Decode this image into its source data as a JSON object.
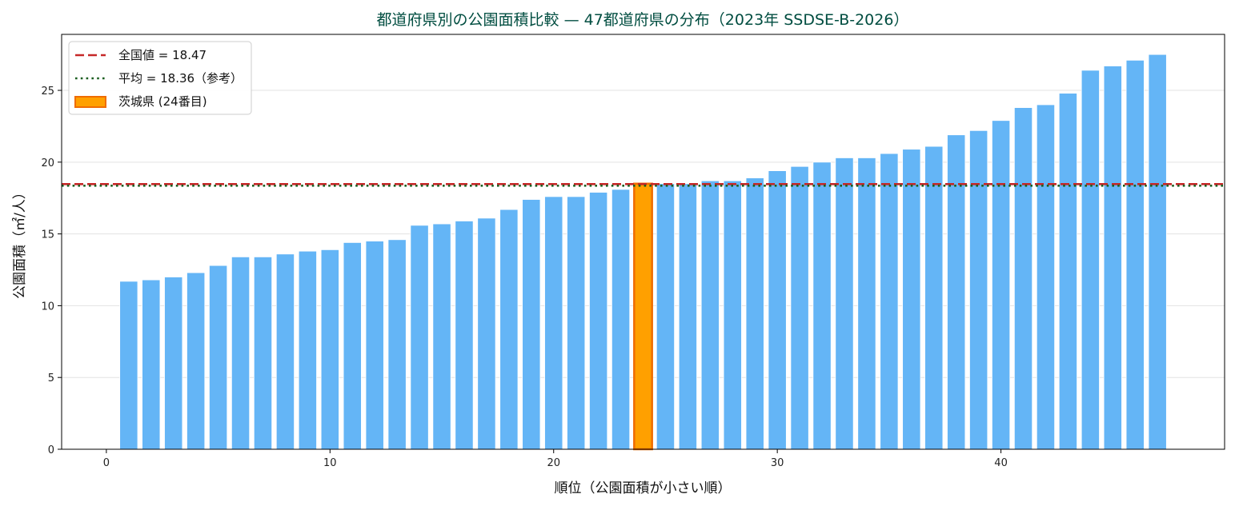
{
  "chart_data": {
    "type": "bar",
    "title": "都道府県別の公園面積比較 — 47都道府県の分布（2023年 SSDSE-B-2026）",
    "xlabel": "順位（公園面積が小さい順）",
    "ylabel": "公園面積（㎡/人）",
    "xlim": [
      -2,
      50
    ],
    "ylim": [
      0,
      28.9
    ],
    "xticks": [
      0,
      10,
      20,
      30,
      40
    ],
    "yticks": [
      0,
      5,
      10,
      15,
      20,
      25
    ],
    "grid": "y",
    "legend_position": "top-left",
    "x": [
      1,
      2,
      3,
      4,
      5,
      6,
      7,
      8,
      9,
      10,
      11,
      12,
      13,
      14,
      15,
      16,
      17,
      18,
      19,
      20,
      21,
      22,
      23,
      24,
      25,
      26,
      27,
      28,
      29,
      30,
      31,
      32,
      33,
      34,
      35,
      36,
      37,
      38,
      39,
      40,
      41,
      42,
      43,
      44,
      45,
      46,
      47
    ],
    "values": [
      11.7,
      11.8,
      12.0,
      12.3,
      12.8,
      13.4,
      13.4,
      13.6,
      13.8,
      13.9,
      14.4,
      14.5,
      14.6,
      15.6,
      15.7,
      15.9,
      16.1,
      16.7,
      17.4,
      17.6,
      17.6,
      17.9,
      18.1,
      18.5,
      18.5,
      18.5,
      18.7,
      18.7,
      18.9,
      19.4,
      19.7,
      20.0,
      20.3,
      20.3,
      20.6,
      20.9,
      21.1,
      21.9,
      22.2,
      22.9,
      23.8,
      24.0,
      24.8,
      26.4,
      26.7,
      27.1,
      27.5
    ],
    "highlight_index": 23,
    "bar_color": "#64b5f6",
    "highlight_color": "#ffa000",
    "highlight_edge_color": "#ef6c00",
    "reference_lines": [
      {
        "label": "全国値 = 18.47",
        "value": 18.47,
        "style": "dashed",
        "color": "#c62828"
      },
      {
        "label": "平均 = 18.36（参考）",
        "value": 18.36,
        "style": "dotted",
        "color": "#1b5e20"
      }
    ],
    "legend": [
      {
        "label": "全国値 = 18.47",
        "kind": "dashed",
        "color": "#c62828"
      },
      {
        "label": "平均 = 18.36（参考）",
        "kind": "dotted",
        "color": "#1b5e20"
      },
      {
        "label": "茨城県 (24番目)",
        "kind": "patch",
        "color": "#ffa000"
      }
    ],
    "title_color": "#004d40"
  }
}
